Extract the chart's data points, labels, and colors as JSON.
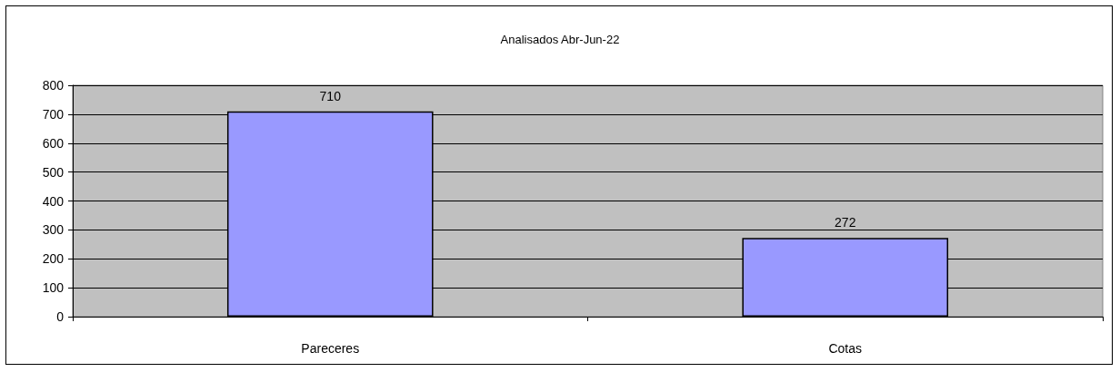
{
  "chart_data": {
    "type": "bar",
    "title": "Analisados Abr-Jun-22",
    "categories": [
      "Pareceres",
      "Cotas"
    ],
    "values": [
      710,
      272
    ],
    "color": "#9999ff",
    "ylim": [
      0,
      800
    ],
    "yticks": [
      0,
      100,
      200,
      300,
      400,
      500,
      600,
      700,
      800
    ],
    "grid": "y",
    "data_labels": true
  }
}
